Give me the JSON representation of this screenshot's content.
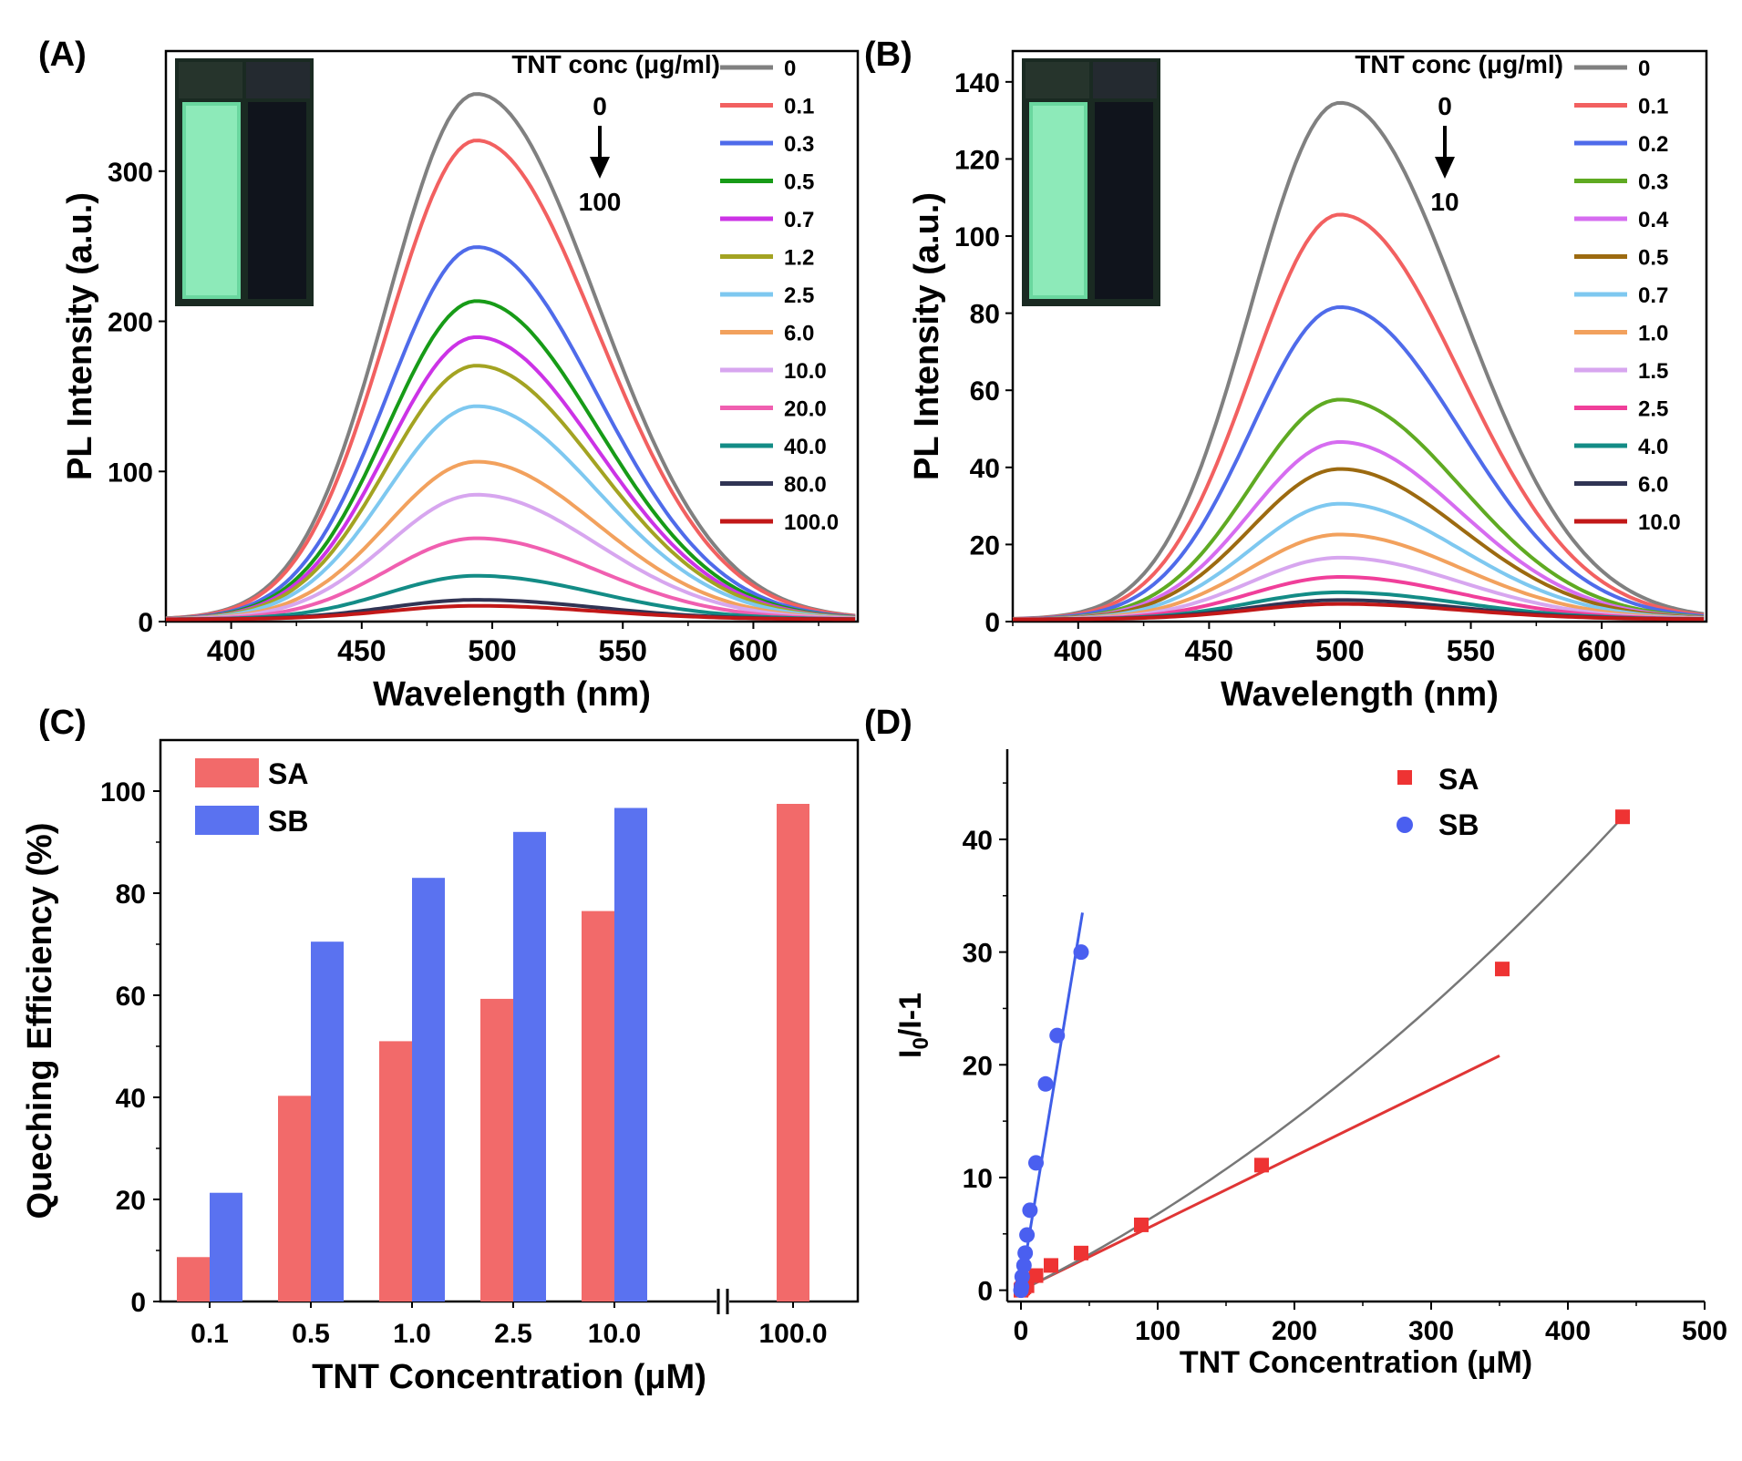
{
  "colors": {
    "spectra_A": [
      "#808080",
      "#f26060",
      "#4f6bea",
      "#179b17",
      "#cc33e6",
      "#a3a322",
      "#7ec8f0",
      "#f2a15d",
      "#d7a6ef",
      "#f05fb0",
      "#138c86",
      "#303454",
      "#c21818"
    ],
    "spectra_B": [
      "#808080",
      "#f26060",
      "#4f6bea",
      "#5faa22",
      "#d66cf0",
      "#9c6a10",
      "#7ec8f0",
      "#f2a15d",
      "#d7a6ef",
      "#f03f9a",
      "#138c86",
      "#303454",
      "#c21818"
    ],
    "SA": "#f26a6a",
    "SB": "#5a72f0",
    "SA_marker": "#ee3333",
    "SB_marker": "#4a5ff0",
    "fit_SA": "#e03535",
    "fit_SB": "#3f5ee8",
    "curve_SA": "#777777"
  },
  "chart_data": [
    {
      "panel": "(A)",
      "type": "line",
      "xlabel": "Wavelength (nm)",
      "ylabel": "PL Intensity (a.u.)",
      "xlim": [
        375,
        640
      ],
      "ylim": [
        0,
        380
      ],
      "xticks": [
        "400",
        "450",
        "500",
        "550",
        "600"
      ],
      "yticks": [
        "0",
        "100",
        "200",
        "300"
      ],
      "legend_title": "TNT conc (μg/ml)",
      "arrow_top": "0",
      "arrow_bottom": "100",
      "peak_x": 494,
      "series": [
        {
          "name": "0",
          "peak": 350
        },
        {
          "name": "0.1",
          "peak": 319
        },
        {
          "name": "0.3",
          "peak": 248
        },
        {
          "name": "0.5",
          "peak": 212
        },
        {
          "name": "0.7",
          "peak": 188
        },
        {
          "name": "1.2",
          "peak": 169
        },
        {
          "name": "2.5",
          "peak": 142
        },
        {
          "name": "6.0",
          "peak": 105
        },
        {
          "name": "10.0",
          "peak": 83
        },
        {
          "name": "20.0",
          "peak": 54
        },
        {
          "name": "40.0",
          "peak": 29
        },
        {
          "name": "80.0",
          "peak": 13
        },
        {
          "name": "100.0",
          "peak": 9
        }
      ]
    },
    {
      "panel": "(B)",
      "type": "line",
      "xlabel": "Wavelength (nm)",
      "ylabel": "PL Intensity (a.u.)",
      "xlim": [
        375,
        640
      ],
      "ylim": [
        0,
        148
      ],
      "xticks": [
        "400",
        "450",
        "500",
        "550",
        "600"
      ],
      "yticks": [
        "0",
        "20",
        "40",
        "60",
        "80",
        "100",
        "120",
        "140"
      ],
      "legend_title": "TNT conc (μg/ml)",
      "arrow_top": "0",
      "arrow_bottom": "10",
      "peak_x": 500,
      "series": [
        {
          "name": "0",
          "peak": 134
        },
        {
          "name": "0.1",
          "peak": 105
        },
        {
          "name": "0.2",
          "peak": 81
        },
        {
          "name": "0.3",
          "peak": 57
        },
        {
          "name": "0.4",
          "peak": 46
        },
        {
          "name": "0.5",
          "peak": 39
        },
        {
          "name": "0.7",
          "peak": 30
        },
        {
          "name": "1.0",
          "peak": 22
        },
        {
          "name": "1.5",
          "peak": 16
        },
        {
          "name": "2.5",
          "peak": 11
        },
        {
          "name": "4.0",
          "peak": 7
        },
        {
          "name": "6.0",
          "peak": 5
        },
        {
          "name": "10.0",
          "peak": 4
        }
      ]
    },
    {
      "panel": "(C)",
      "type": "bar",
      "xlabel": "TNT Concentration (μM)",
      "ylabel": "Queching Efficiency (%)",
      "ylim": [
        0,
        110
      ],
      "yticks": [
        "0",
        "20",
        "40",
        "60",
        "80",
        "100"
      ],
      "categories": [
        "0.1",
        "0.5",
        "1.0",
        "2.5",
        "10.0",
        "100.0"
      ],
      "series": [
        {
          "name": "SA",
          "values": [
            8.7,
            40.3,
            51,
            59.3,
            76.5,
            97.5
          ]
        },
        {
          "name": "SB",
          "values": [
            21.3,
            70.5,
            83,
            92,
            96.7,
            null
          ]
        }
      ]
    },
    {
      "panel": "(D)",
      "type": "scatter",
      "xlabel": "TNT Concentration (μM)",
      "ylabel_main": "I",
      "ylabel_sub": "0",
      "ylabel_rest": "/I-1",
      "xlim": [
        -10,
        500
      ],
      "ylim": [
        -1,
        48
      ],
      "xticks": [
        "0",
        "100",
        "200",
        "300",
        "400",
        "500"
      ],
      "yticks": [
        "0",
        "10",
        "20",
        "30",
        "40"
      ],
      "series": [
        {
          "name": "SA",
          "x": [
            0,
            0.5,
            1.3,
            2.2,
            4.4,
            11,
            22,
            44,
            88,
            176,
            352,
            440
          ],
          "y": [
            0,
            0.1,
            0.2,
            0.3,
            0.4,
            1.3,
            2.2,
            3.3,
            5.8,
            11.1,
            28.5,
            42
          ]
        },
        {
          "name": "SB",
          "x": [
            0,
            0.44,
            0.88,
            2.2,
            3.1,
            4.4,
            6.6,
            11,
            18,
            26.5,
            44
          ],
          "y": [
            0,
            0.3,
            1.2,
            2.2,
            3.3,
            4.9,
            7.1,
            11.3,
            18.3,
            22.6,
            30
          ]
        }
      ],
      "fits": [
        {
          "series": "SB",
          "type": "linear",
          "x": [
            0,
            45
          ],
          "y": [
            0.4,
            33.5
          ]
        },
        {
          "series": "SA",
          "type": "linear",
          "x": [
            0,
            350
          ],
          "y": [
            0,
            20.8
          ]
        },
        {
          "series": "SA",
          "type": "curve",
          "x": [
            0,
            100,
            200,
            300,
            440
          ],
          "y": [
            0,
            6,
            13,
            23,
            42
          ]
        }
      ]
    }
  ]
}
